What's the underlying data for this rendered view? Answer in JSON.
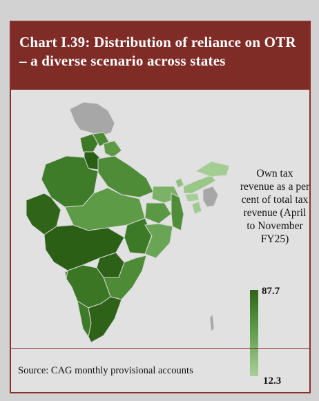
{
  "chart": {
    "title": "Chart I.39: Distribution of reliance on OTR – a diverse scenario across states",
    "legend": {
      "title": "Own tax revenue as a per cent of total tax revenue (April to November FY25)",
      "max_label": "87.7",
      "min_label": "12.3",
      "color_high": "#2e6418",
      "color_low": "#a8d099"
    },
    "no_data_color": "#a9a9a9",
    "source": "Source: CAG monthly provisional accounts"
  }
}
